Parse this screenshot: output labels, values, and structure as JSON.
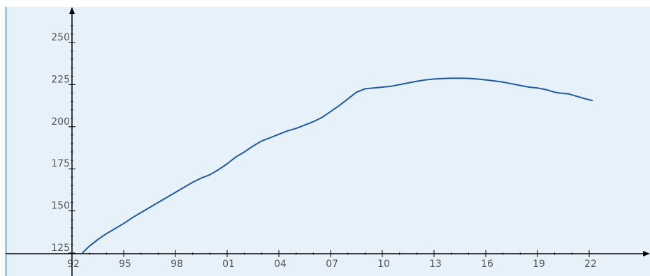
{
  "chart_data": {
    "type": "line",
    "title": "",
    "xlabel": "",
    "ylabel": "",
    "xlim": [
      1991.9,
      2022.4
    ],
    "ylim": [
      123,
      262
    ],
    "x_ticks": [
      {
        "value": 1992,
        "label": "92"
      },
      {
        "value": 1995,
        "label": "95"
      },
      {
        "value": 1998,
        "label": "98"
      },
      {
        "value": 2001,
        "label": "01"
      },
      {
        "value": 2004,
        "label": "04"
      },
      {
        "value": 2007,
        "label": "07"
      },
      {
        "value": 2010,
        "label": "10"
      },
      {
        "value": 2013,
        "label": "13"
      },
      {
        "value": 2016,
        "label": "16"
      },
      {
        "value": 2019,
        "label": "19"
      },
      {
        "value": 2022,
        "label": "22"
      }
    ],
    "y_ticks": [
      125,
      150,
      175,
      200,
      225,
      250
    ],
    "grid": false,
    "legend": "none",
    "colors": {
      "background": "#e6f1fa",
      "line": "#1f5aa6",
      "axis": "#000000",
      "left_border": "#6ab0e0"
    },
    "series": [
      {
        "x": [
          1992.6,
          1993.0,
          1993.5,
          1994.0,
          1994.5,
          1995.0,
          1995.5,
          1996.0,
          1996.5,
          1997.0,
          1997.5,
          1998.0,
          1998.5,
          1999.0,
          1999.5,
          2000.0,
          2000.5,
          2001.0,
          2001.5,
          2002.0,
          2002.5,
          2003.0,
          2003.5,
          2004.0,
          2004.5,
          2005.0,
          2005.5,
          2006.0,
          2006.5,
          2007.0,
          2007.5,
          2008.0,
          2008.5,
          2009.0,
          2009.5,
          2010.0,
          2010.5,
          2011.0,
          2011.5,
          2012.0,
          2012.5,
          2013.0,
          2013.5,
          2014.0,
          2014.5,
          2015.0,
          2015.5,
          2016.0,
          2016.5,
          2017.0,
          2017.5,
          2018.0,
          2018.5,
          2019.0,
          2019.5,
          2020.0,
          2020.3,
          2020.8,
          2021.3,
          2021.8,
          2022.2
        ],
        "values": [
          125,
          129,
          133,
          136.5,
          139.5,
          142.5,
          146,
          149,
          152,
          155,
          158,
          161,
          164,
          167,
          169.5,
          171.5,
          174.5,
          178,
          182,
          185,
          188.5,
          191.5,
          193.5,
          195.5,
          197.5,
          199,
          201,
          203,
          205.5,
          209,
          212.5,
          216.5,
          220.5,
          222.5,
          223,
          223.5,
          224,
          225,
          226,
          227,
          227.8,
          228.3,
          228.6,
          228.8,
          228.8,
          228.7,
          228.3,
          227.8,
          227.2,
          226.5,
          225.5,
          224.5,
          223.5,
          223,
          222,
          220.5,
          220,
          219.5,
          218,
          216.5,
          215.5
        ]
      }
    ]
  }
}
